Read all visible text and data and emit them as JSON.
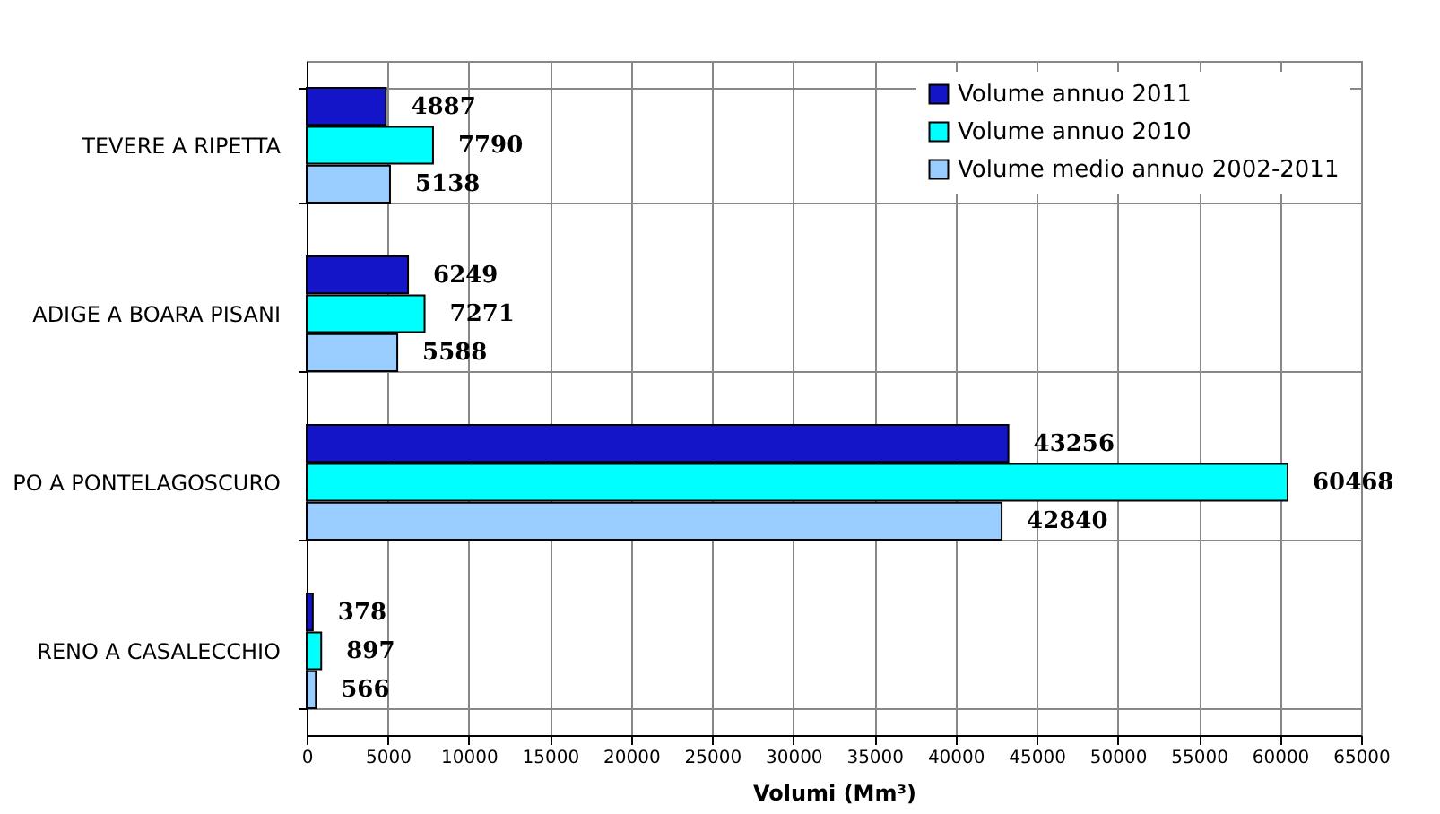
{
  "chart_data": {
    "type": "bar",
    "orientation": "horizontal",
    "xlabel": "Volumi (Mm³)",
    "categories": [
      "TEVERE A RIPETTA",
      "ADIGE A BOARA PISANI",
      "PO A PONTELAGOSCURO",
      "RENO A CASALECCHIO"
    ],
    "series": [
      {
        "name": "Volume annuo 2011",
        "color": "#1414c8",
        "values": [
          4887,
          6249,
          43256,
          378
        ]
      },
      {
        "name": "Volume annuo 2010",
        "color": "#00ffff",
        "values": [
          7790,
          7271,
          60468,
          897
        ]
      },
      {
        "name": "Volume medio annuo 2002-2011",
        "color": "#99ccff",
        "values": [
          5138,
          5588,
          42840,
          566
        ]
      }
    ],
    "xlim": [
      0,
      65000
    ],
    "xticks": [
      0,
      5000,
      10000,
      15000,
      20000,
      25000,
      30000,
      35000,
      40000,
      45000,
      50000,
      55000,
      60000,
      65000
    ],
    "grid": true,
    "legend": "top right",
    "data_labels": true
  }
}
